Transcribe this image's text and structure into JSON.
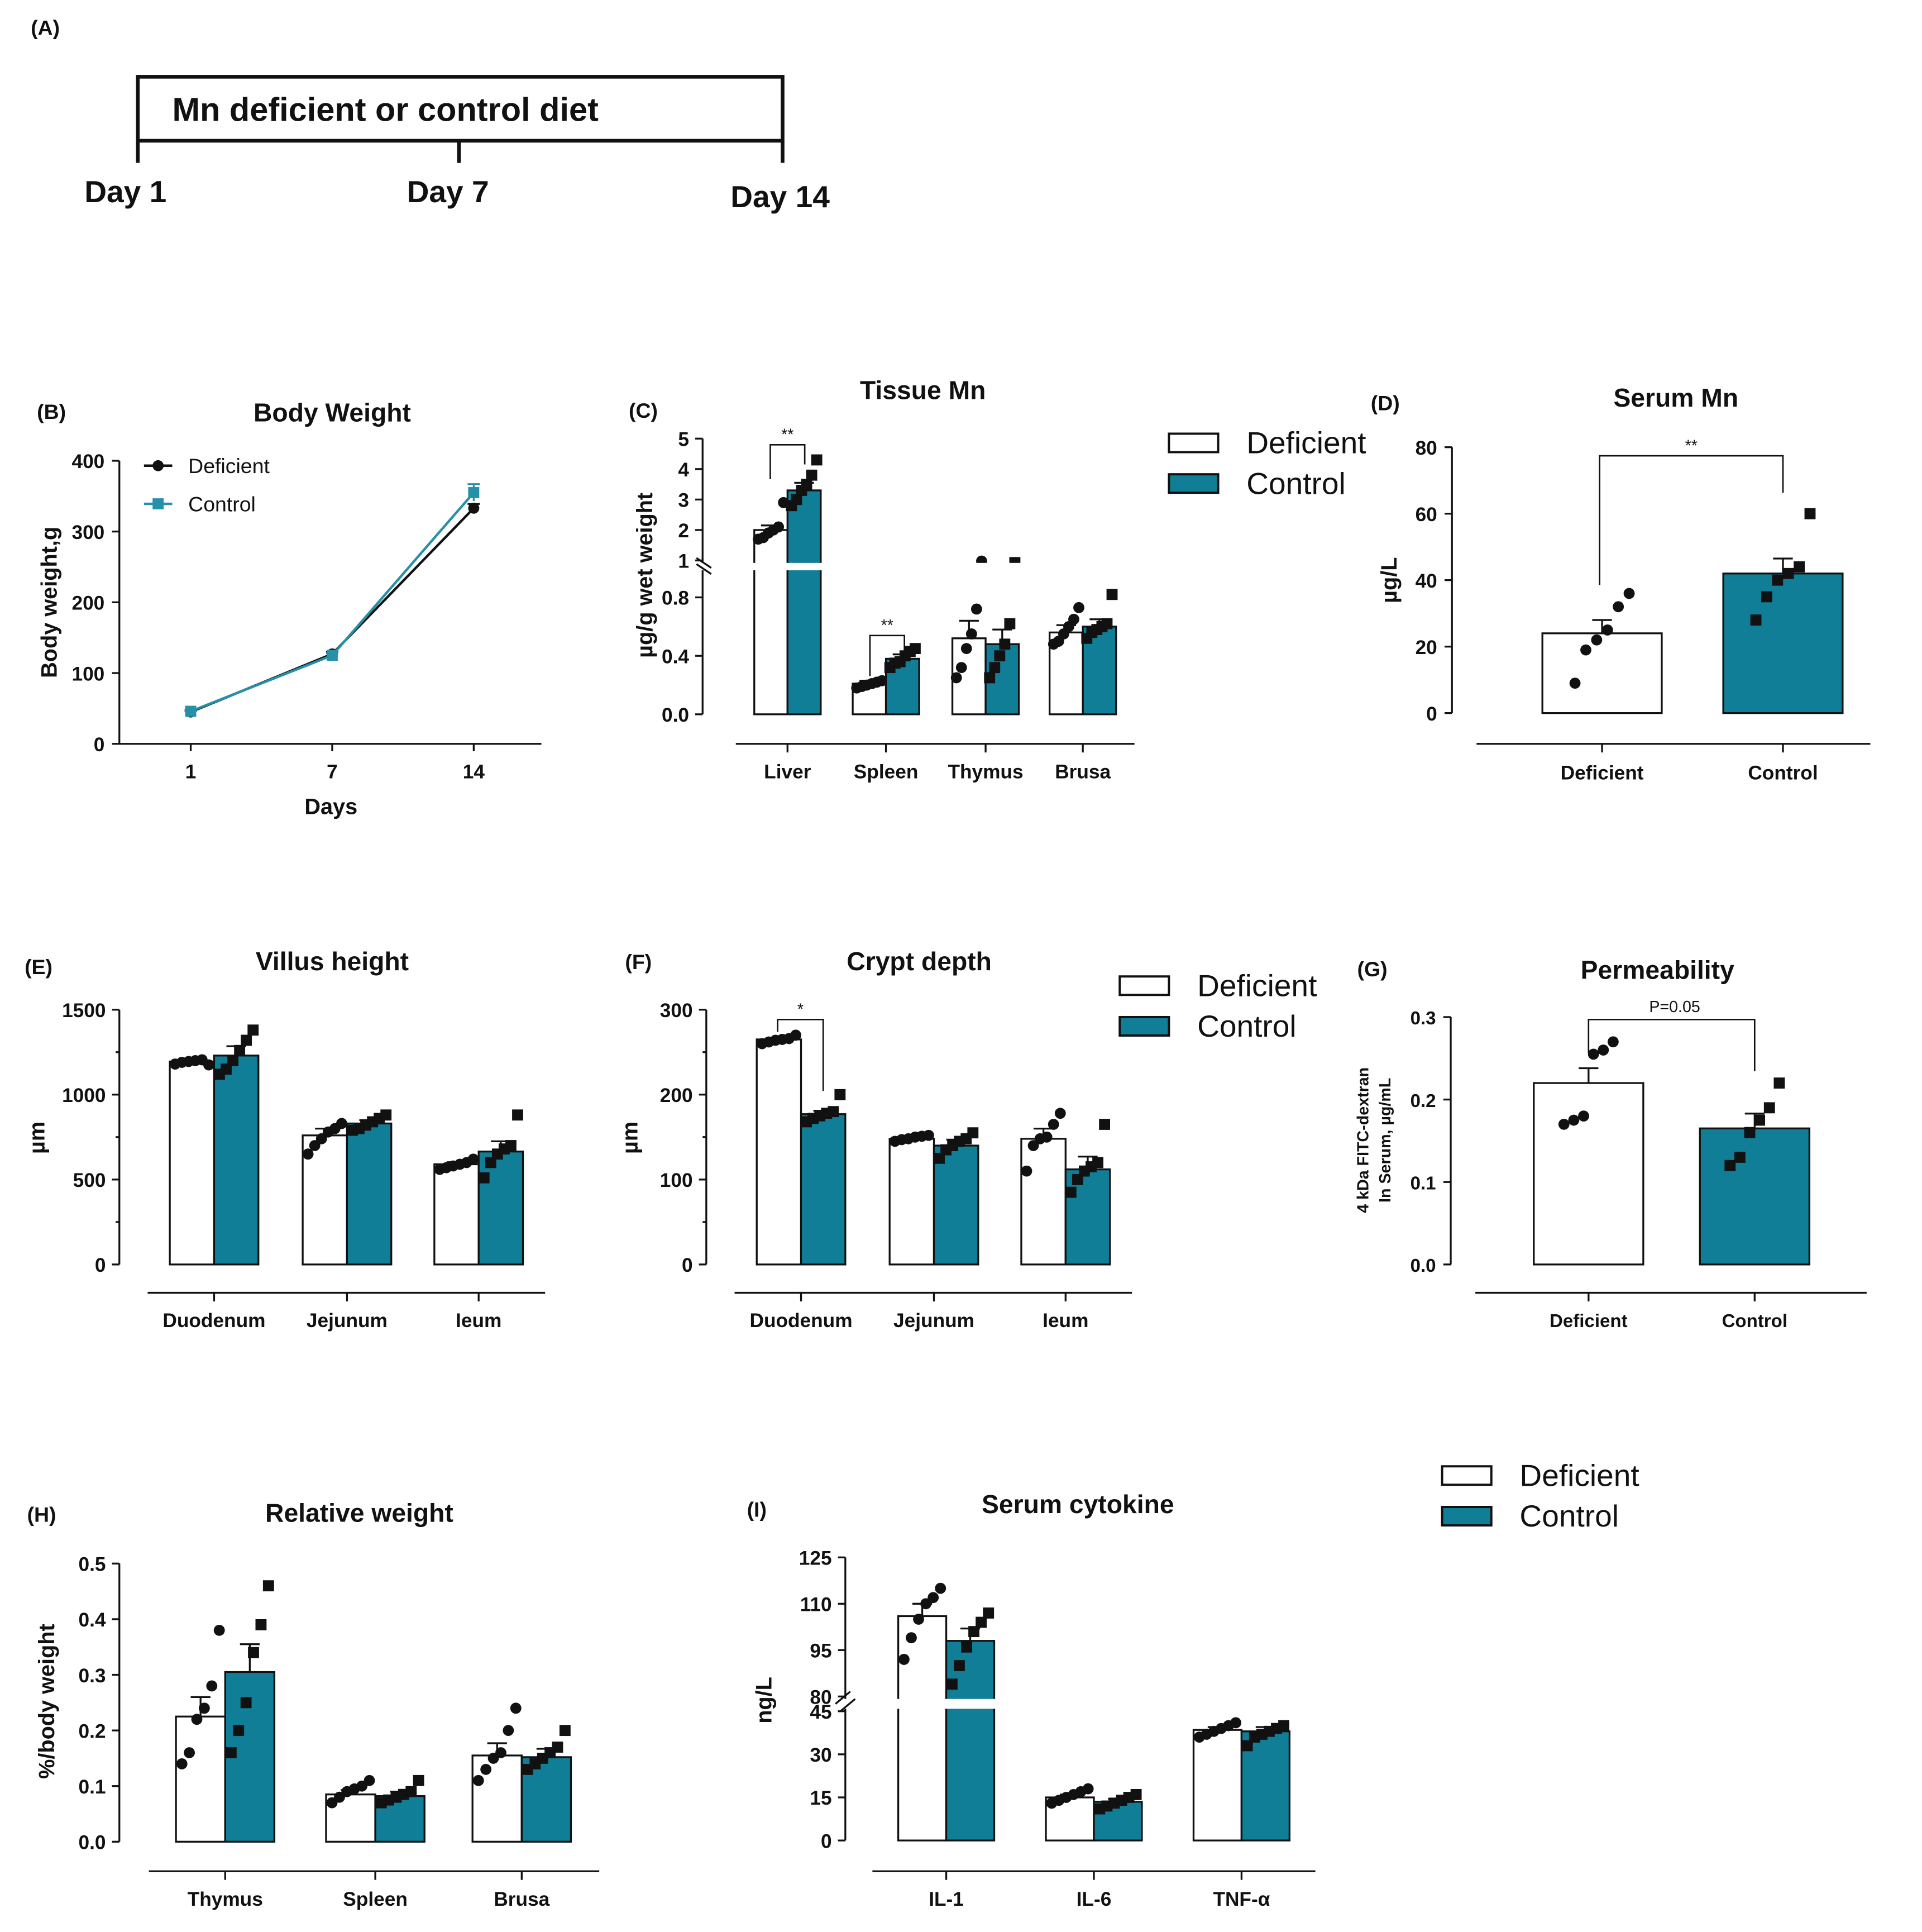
{
  "colors": {
    "control": "#107E96",
    "deficient": "#FFFFFF",
    "ink": "#111111",
    "line_control": "#2590A7"
  },
  "timeline": {
    "panel_label": "(A)",
    "bar_text": "Mn deficient or control diet",
    "days": [
      "Day 1",
      "Day 7",
      "Day 14"
    ]
  },
  "chart_data": [
    {
      "id": "B",
      "panel_label": "(B)",
      "type": "line",
      "title": "Body Weight",
      "xlabel": "Days",
      "ylabel": "Body weight,g",
      "x": [
        1,
        7,
        14
      ],
      "xticks": [
        "1",
        "7",
        "14"
      ],
      "ylim": [
        0,
        400
      ],
      "yticks": [
        0,
        100,
        200,
        300,
        400
      ],
      "series": [
        {
          "name": "Deficient",
          "values": [
            45,
            127,
            333
          ],
          "errors": [
            2,
            3,
            6
          ]
        },
        {
          "name": "Control",
          "values": [
            46,
            125,
            355
          ],
          "errors": [
            2,
            3,
            12
          ]
        }
      ],
      "legend": [
        "Deficient",
        "Control"
      ]
    },
    {
      "id": "C",
      "panel_label": "(C)",
      "type": "bar",
      "title": "Tissue Mn",
      "ylabel": "µg/g wet weight",
      "categories": [
        "Liver",
        "Spleen",
        "Thymus",
        "Brusa"
      ],
      "axis_break": true,
      "yticks_lower": [
        "0.0",
        "0.4",
        "0.8"
      ],
      "yticks_upper": [
        "1",
        "2",
        "3",
        "4",
        "5"
      ],
      "series": [
        {
          "name": "Deficient",
          "values": [
            2.0,
            0.21,
            0.52,
            0.56
          ],
          "errors": [
            0.15,
            0.02,
            0.12,
            0.05
          ],
          "points": [
            [
              1.7,
              1.75,
              1.9,
              2.0,
              2.1,
              2.9
            ],
            [
              0.18,
              0.19,
              0.2,
              0.21,
              0.22,
              0.23
            ],
            [
              0.25,
              0.32,
              0.45,
              0.55,
              0.72,
              0.98
            ],
            [
              0.48,
              0.5,
              0.55,
              0.6,
              0.65,
              0.73
            ]
          ]
        },
        {
          "name": "Control",
          "values": [
            3.3,
            0.38,
            0.48,
            0.6
          ],
          "errors": [
            0.25,
            0.03,
            0.1,
            0.05
          ],
          "points": [
            [
              2.8,
              3.0,
              3.3,
              3.5,
              3.8,
              4.3
            ],
            [
              0.32,
              0.35,
              0.36,
              0.4,
              0.43,
              0.45
            ],
            [
              0.25,
              0.32,
              0.4,
              0.48,
              0.62,
              0.93
            ],
            [
              0.52,
              0.56,
              0.58,
              0.6,
              0.62,
              0.82
            ]
          ]
        }
      ],
      "annotations": [
        {
          "label": "**",
          "category": "Liver"
        },
        {
          "label": "**",
          "category": "Spleen"
        }
      ],
      "legend": [
        "Deficient",
        "Control"
      ]
    },
    {
      "id": "D",
      "panel_label": "(D)",
      "type": "bar",
      "title": "Serum Mn",
      "ylabel": "µg/L",
      "categories": [
        "Deficient",
        "Control"
      ],
      "ylim": [
        0,
        80
      ],
      "yticks": [
        0,
        20,
        40,
        60,
        80
      ],
      "values": [
        24,
        42
      ],
      "errors": [
        4,
        4.5
      ],
      "points": [
        [
          9,
          19,
          22,
          25,
          32,
          36
        ],
        [
          28,
          35,
          40,
          42,
          44,
          60
        ]
      ],
      "annotations": [
        {
          "label": "**"
        }
      ]
    },
    {
      "id": "E",
      "panel_label": "(E)",
      "type": "bar",
      "title": "Villus height",
      "ylabel": "µm",
      "categories": [
        "Duodenum",
        "Jejunum",
        "Ieum"
      ],
      "ylim": [
        0,
        1500
      ],
      "yticks": [
        0,
        500,
        1000,
        1500
      ],
      "series": [
        {
          "name": "Deficient",
          "values": [
            1195,
            760,
            590
          ],
          "errors": [
            10,
            40,
            12
          ],
          "points": [
            [
              1180,
              1190,
              1195,
              1200,
              1205,
              1175
            ],
            [
              650,
              700,
              740,
              780,
              800,
              830
            ],
            [
              560,
              570,
              580,
              590,
              600,
              620
            ]
          ]
        },
        {
          "name": "Control",
          "values": [
            1230,
            830,
            665
          ],
          "errors": [
            55,
            20,
            60
          ],
          "points": [
            [
              1120,
              1150,
              1200,
              1260,
              1320,
              1380
            ],
            [
              790,
              800,
              820,
              840,
              860,
              880
            ],
            [
              510,
              600,
              650,
              680,
              700,
              880
            ]
          ]
        }
      ]
    },
    {
      "id": "F",
      "panel_label": "(F)",
      "type": "bar",
      "title": "Crypt depth",
      "ylabel": "µm",
      "categories": [
        "Duodenum",
        "Jejunum",
        "Ieum"
      ],
      "ylim": [
        0,
        300
      ],
      "yticks": [
        0,
        100,
        200,
        300
      ],
      "series": [
        {
          "name": "Deficient",
          "values": [
            265,
            148,
            148
          ],
          "errors": [
            2,
            2,
            12
          ],
          "points": [
            [
              260,
              262,
              264,
              265,
              266,
              270
            ],
            [
              145,
              147,
              148,
              150,
              151,
              152
            ],
            [
              110,
              140,
              148,
              150,
              165,
              178
            ]
          ]
        },
        {
          "name": "Control",
          "values": [
            177,
            140,
            112
          ],
          "errors": [
            4,
            7,
            15
          ],
          "points": [
            [
              168,
              172,
              175,
              178,
              180,
              200
            ],
            [
              125,
              135,
              140,
              145,
              148,
              155
            ],
            [
              85,
              100,
              110,
              115,
              120,
              165
            ]
          ]
        }
      ],
      "annotations": [
        {
          "label": "*",
          "category": "Duodenum"
        }
      ],
      "legend": [
        "Deficient",
        "Control"
      ]
    },
    {
      "id": "G",
      "panel_label": "(G)",
      "type": "bar",
      "title": "Permeability",
      "ylabel": "4 kDa FITC-dextran In Serum, µg/mL",
      "ylabel_lines": [
        "4 kDa FITC-dextran",
        "In Serum, µg/mL"
      ],
      "categories": [
        "Deficient",
        "Control"
      ],
      "ylim": [
        0,
        0.3
      ],
      "yticks": [
        "0.0",
        "0.1",
        "0.2",
        "0.3"
      ],
      "values": [
        0.22,
        0.165
      ],
      "errors": [
        0.018,
        0.018
      ],
      "points": [
        [
          0.17,
          0.175,
          0.18,
          0.255,
          0.26,
          0.27
        ],
        [
          0.12,
          0.13,
          0.16,
          0.175,
          0.19,
          0.22
        ]
      ],
      "annotations": [
        {
          "label": "P=0.05"
        }
      ]
    },
    {
      "id": "H",
      "panel_label": "(H)",
      "type": "bar",
      "title": "Relative weight",
      "ylabel": "%/body weight",
      "categories": [
        "Thymus",
        "Spleen",
        "Brusa"
      ],
      "ylim": [
        0,
        0.5
      ],
      "yticks": [
        "0.0",
        "0.1",
        "0.2",
        "0.3",
        "0.4",
        "0.5"
      ],
      "series": [
        {
          "name": "Deficient",
          "values": [
            0.225,
            0.085,
            0.155
          ],
          "errors": [
            0.035,
            0.008,
            0.022
          ],
          "points": [
            [
              0.14,
              0.16,
              0.22,
              0.24,
              0.28,
              0.38
            ],
            [
              0.07,
              0.08,
              0.09,
              0.095,
              0.1,
              0.11
            ],
            [
              0.11,
              0.13,
              0.15,
              0.16,
              0.2,
              0.24
            ]
          ]
        },
        {
          "name": "Control",
          "values": [
            0.305,
            0.082,
            0.152
          ],
          "errors": [
            0.05,
            0.008,
            0.015
          ],
          "points": [
            [
              0.16,
              0.2,
              0.25,
              0.34,
              0.39,
              0.46
            ],
            [
              0.07,
              0.075,
              0.08,
              0.085,
              0.09,
              0.11
            ],
            [
              0.13,
              0.14,
              0.15,
              0.16,
              0.17,
              0.2
            ]
          ]
        }
      ]
    },
    {
      "id": "I",
      "panel_label": "(I)",
      "type": "bar",
      "title": "Serum cytokine",
      "ylabel": "ng/L",
      "categories": [
        "IL-1",
        "IL-6",
        "TNF-α"
      ],
      "axis_break": true,
      "yticks_lower": [
        "0",
        "15",
        "30",
        "45"
      ],
      "yticks_upper": [
        "80",
        "95",
        "110",
        "125"
      ],
      "series": [
        {
          "name": "Deficient",
          "values": [
            106,
            15,
            38.5
          ],
          "errors": [
            4,
            1,
            1
          ],
          "points": [
            [
              92,
              99,
              105,
              110,
              112,
              115
            ],
            [
              13,
              14,
              15,
              16,
              17,
              18
            ],
            [
              36,
              37,
              38,
              39,
              40,
              41
            ]
          ]
        },
        {
          "name": "Control",
          "values": [
            98,
            13.5,
            38
          ],
          "errors": [
            4,
            1,
            1.5
          ],
          "points": [
            [
              84,
              90,
              96,
              101,
              104,
              107
            ],
            [
              11,
              12,
              13,
              14,
              15,
              16
            ],
            [
              33,
              36,
              37,
              38,
              39,
              40
            ]
          ]
        }
      ],
      "legend": [
        "Deficient",
        "Control"
      ]
    }
  ]
}
